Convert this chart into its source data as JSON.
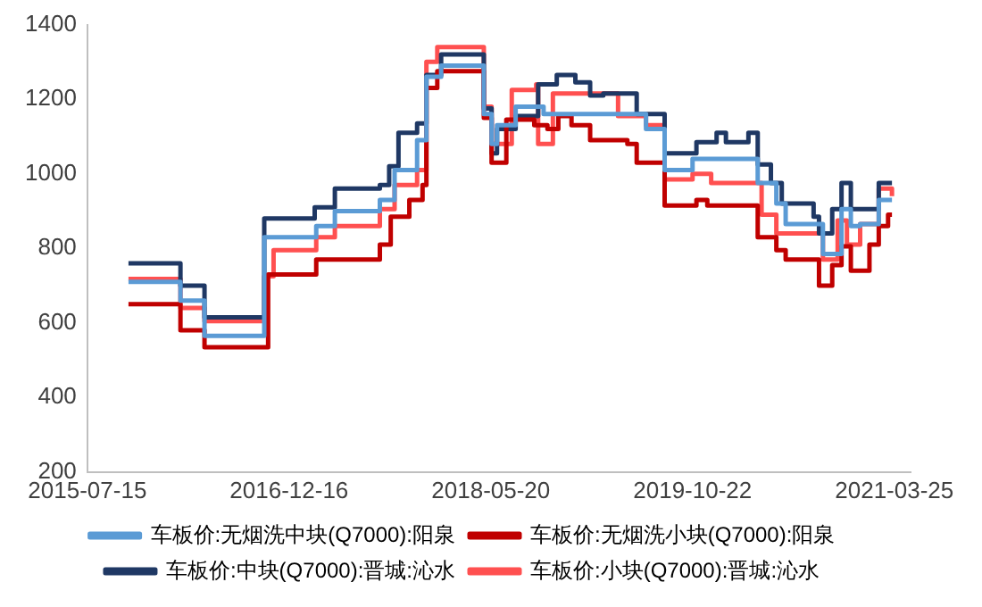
{
  "chart_data": {
    "type": "step",
    "xlim": [
      "2015-07-15",
      "2021-05-06"
    ],
    "xticks": [
      "2015-07-15",
      "2016-12-16",
      "2018-05-20",
      "2019-10-22",
      "2021-03-25"
    ],
    "ylim": [
      200,
      1400
    ],
    "yticks": [
      200,
      400,
      600,
      800,
      1000,
      1200,
      1400
    ],
    "grid": false,
    "legend": "bottom",
    "marker": "none",
    "series": [
      {
        "name": "车板价:无烟洗中块(Q7000):阳泉",
        "color": "#5b9bd5",
        "x": [
          "2015-10-29",
          "2016-03-11",
          "2016-05-12",
          "2016-10-13",
          "2017-02-24",
          "2017-04-13",
          "2017-08-07",
          "2017-09-14",
          "2017-11-11",
          "2017-12-05",
          "2018-01-12",
          "2018-05-02",
          "2018-05-22",
          "2018-06-05",
          "2018-07-23",
          "2018-10-03",
          "2019-06-24",
          "2019-08-11",
          "2019-10-22",
          "2020-04-07",
          "2020-05-25",
          "2020-06-18",
          "2020-09-22",
          "2020-11-09",
          "2020-12-03",
          "2020-12-27",
          "2021-02-13",
          "2021-03-19"
        ],
        "values": [
          710,
          660,
          565,
          830,
          860,
          900,
          930,
          1010,
          1090,
          1260,
          1290,
          1160,
          1080,
          1130,
          1180,
          1160,
          1120,
          1010,
          1040,
          975,
          920,
          865,
          785,
          905,
          860,
          865,
          930,
          930
        ]
      },
      {
        "name": "车板价:无烟洗小块(Q7000):阳泉",
        "color": "#c00000",
        "x": [
          "2015-10-29",
          "2016-03-11",
          "2016-05-12",
          "2016-10-23",
          "2017-02-24",
          "2017-08-07",
          "2017-09-04",
          "2017-10-22",
          "2017-11-25",
          "2017-12-05",
          "2018-01-02",
          "2018-05-02",
          "2018-05-22",
          "2018-06-29",
          "2018-09-09",
          "2018-10-13",
          "2018-11-10",
          "2018-12-14",
          "2019-01-31",
          "2019-05-07",
          "2019-05-31",
          "2019-08-11",
          "2019-11-01",
          "2019-11-29",
          "2020-04-07",
          "2020-05-25",
          "2020-06-18",
          "2020-09-12",
          "2020-10-16",
          "2020-11-09",
          "2020-12-03",
          "2021-01-20",
          "2021-02-13",
          "2021-03-09",
          "2021-03-19"
        ],
        "values": [
          650,
          580,
          535,
          730,
          770,
          810,
          885,
          930,
          970,
          1230,
          1275,
          1150,
          1030,
          1145,
          1130,
          1120,
          1155,
          1130,
          1090,
          1080,
          1030,
          915,
          930,
          915,
          830,
          795,
          770,
          700,
          755,
          805,
          740,
          810,
          860,
          890,
          890
        ]
      },
      {
        "name": "车板价:中块(Q7000):晋城:沁水",
        "color": "#1f3864",
        "x": [
          "2015-10-29",
          "2016-03-11",
          "2016-05-12",
          "2016-10-13",
          "2017-02-20",
          "2017-04-13",
          "2017-08-07",
          "2017-08-31",
          "2017-09-24",
          "2017-11-11",
          "2017-12-05",
          "2018-01-12",
          "2018-05-02",
          "2018-05-22",
          "2018-06-05",
          "2018-07-23",
          "2018-09-19",
          "2018-11-06",
          "2018-12-24",
          "2019-01-31",
          "2019-03-06",
          "2019-05-31",
          "2019-08-11",
          "2019-11-01",
          "2019-12-23",
          "2020-01-16",
          "2020-03-14",
          "2020-04-07",
          "2020-05-11",
          "2020-06-08",
          "2020-08-29",
          "2020-09-12",
          "2020-10-16",
          "2020-11-09",
          "2020-12-03",
          "2021-02-13",
          "2021-03-19"
        ],
        "values": [
          760,
          700,
          615,
          880,
          910,
          960,
          970,
          1020,
          1110,
          1135,
          1265,
          1320,
          1175,
          1055,
          1120,
          1155,
          1240,
          1265,
          1245,
          1210,
          1215,
          1160,
          1055,
          1085,
          1110,
          1085,
          1110,
          1025,
          975,
          920,
          885,
          840,
          905,
          975,
          905,
          975,
          975
        ]
      },
      {
        "name": "车板价:小块(Q7000):晋城:沁水",
        "color": "#ff5050",
        "x": [
          "2015-10-29",
          "2016-03-11",
          "2016-05-12",
          "2016-10-13",
          "2016-11-06",
          "2017-02-24",
          "2017-04-13",
          "2017-08-07",
          "2017-09-14",
          "2017-11-11",
          "2017-12-05",
          "2018-01-02",
          "2018-05-02",
          "2018-05-22",
          "2018-07-13",
          "2018-09-14",
          "2018-09-19",
          "2018-10-27",
          "2019-04-13",
          "2019-06-24",
          "2019-08-11",
          "2019-10-22",
          "2019-12-09",
          "2020-04-17",
          "2020-05-25",
          "2020-09-22",
          "2020-10-30",
          "2020-11-23",
          "2020-12-27",
          "2021-02-13",
          "2021-03-19"
        ],
        "values": [
          718,
          640,
          605,
          725,
          795,
          830,
          860,
          905,
          970,
          1010,
          1300,
          1340,
          1180,
          1080,
          1225,
          1240,
          1080,
          1215,
          1155,
          1130,
          985,
          1000,
          975,
          890,
          840,
          770,
          875,
          810,
          865,
          960,
          940
        ]
      }
    ]
  }
}
